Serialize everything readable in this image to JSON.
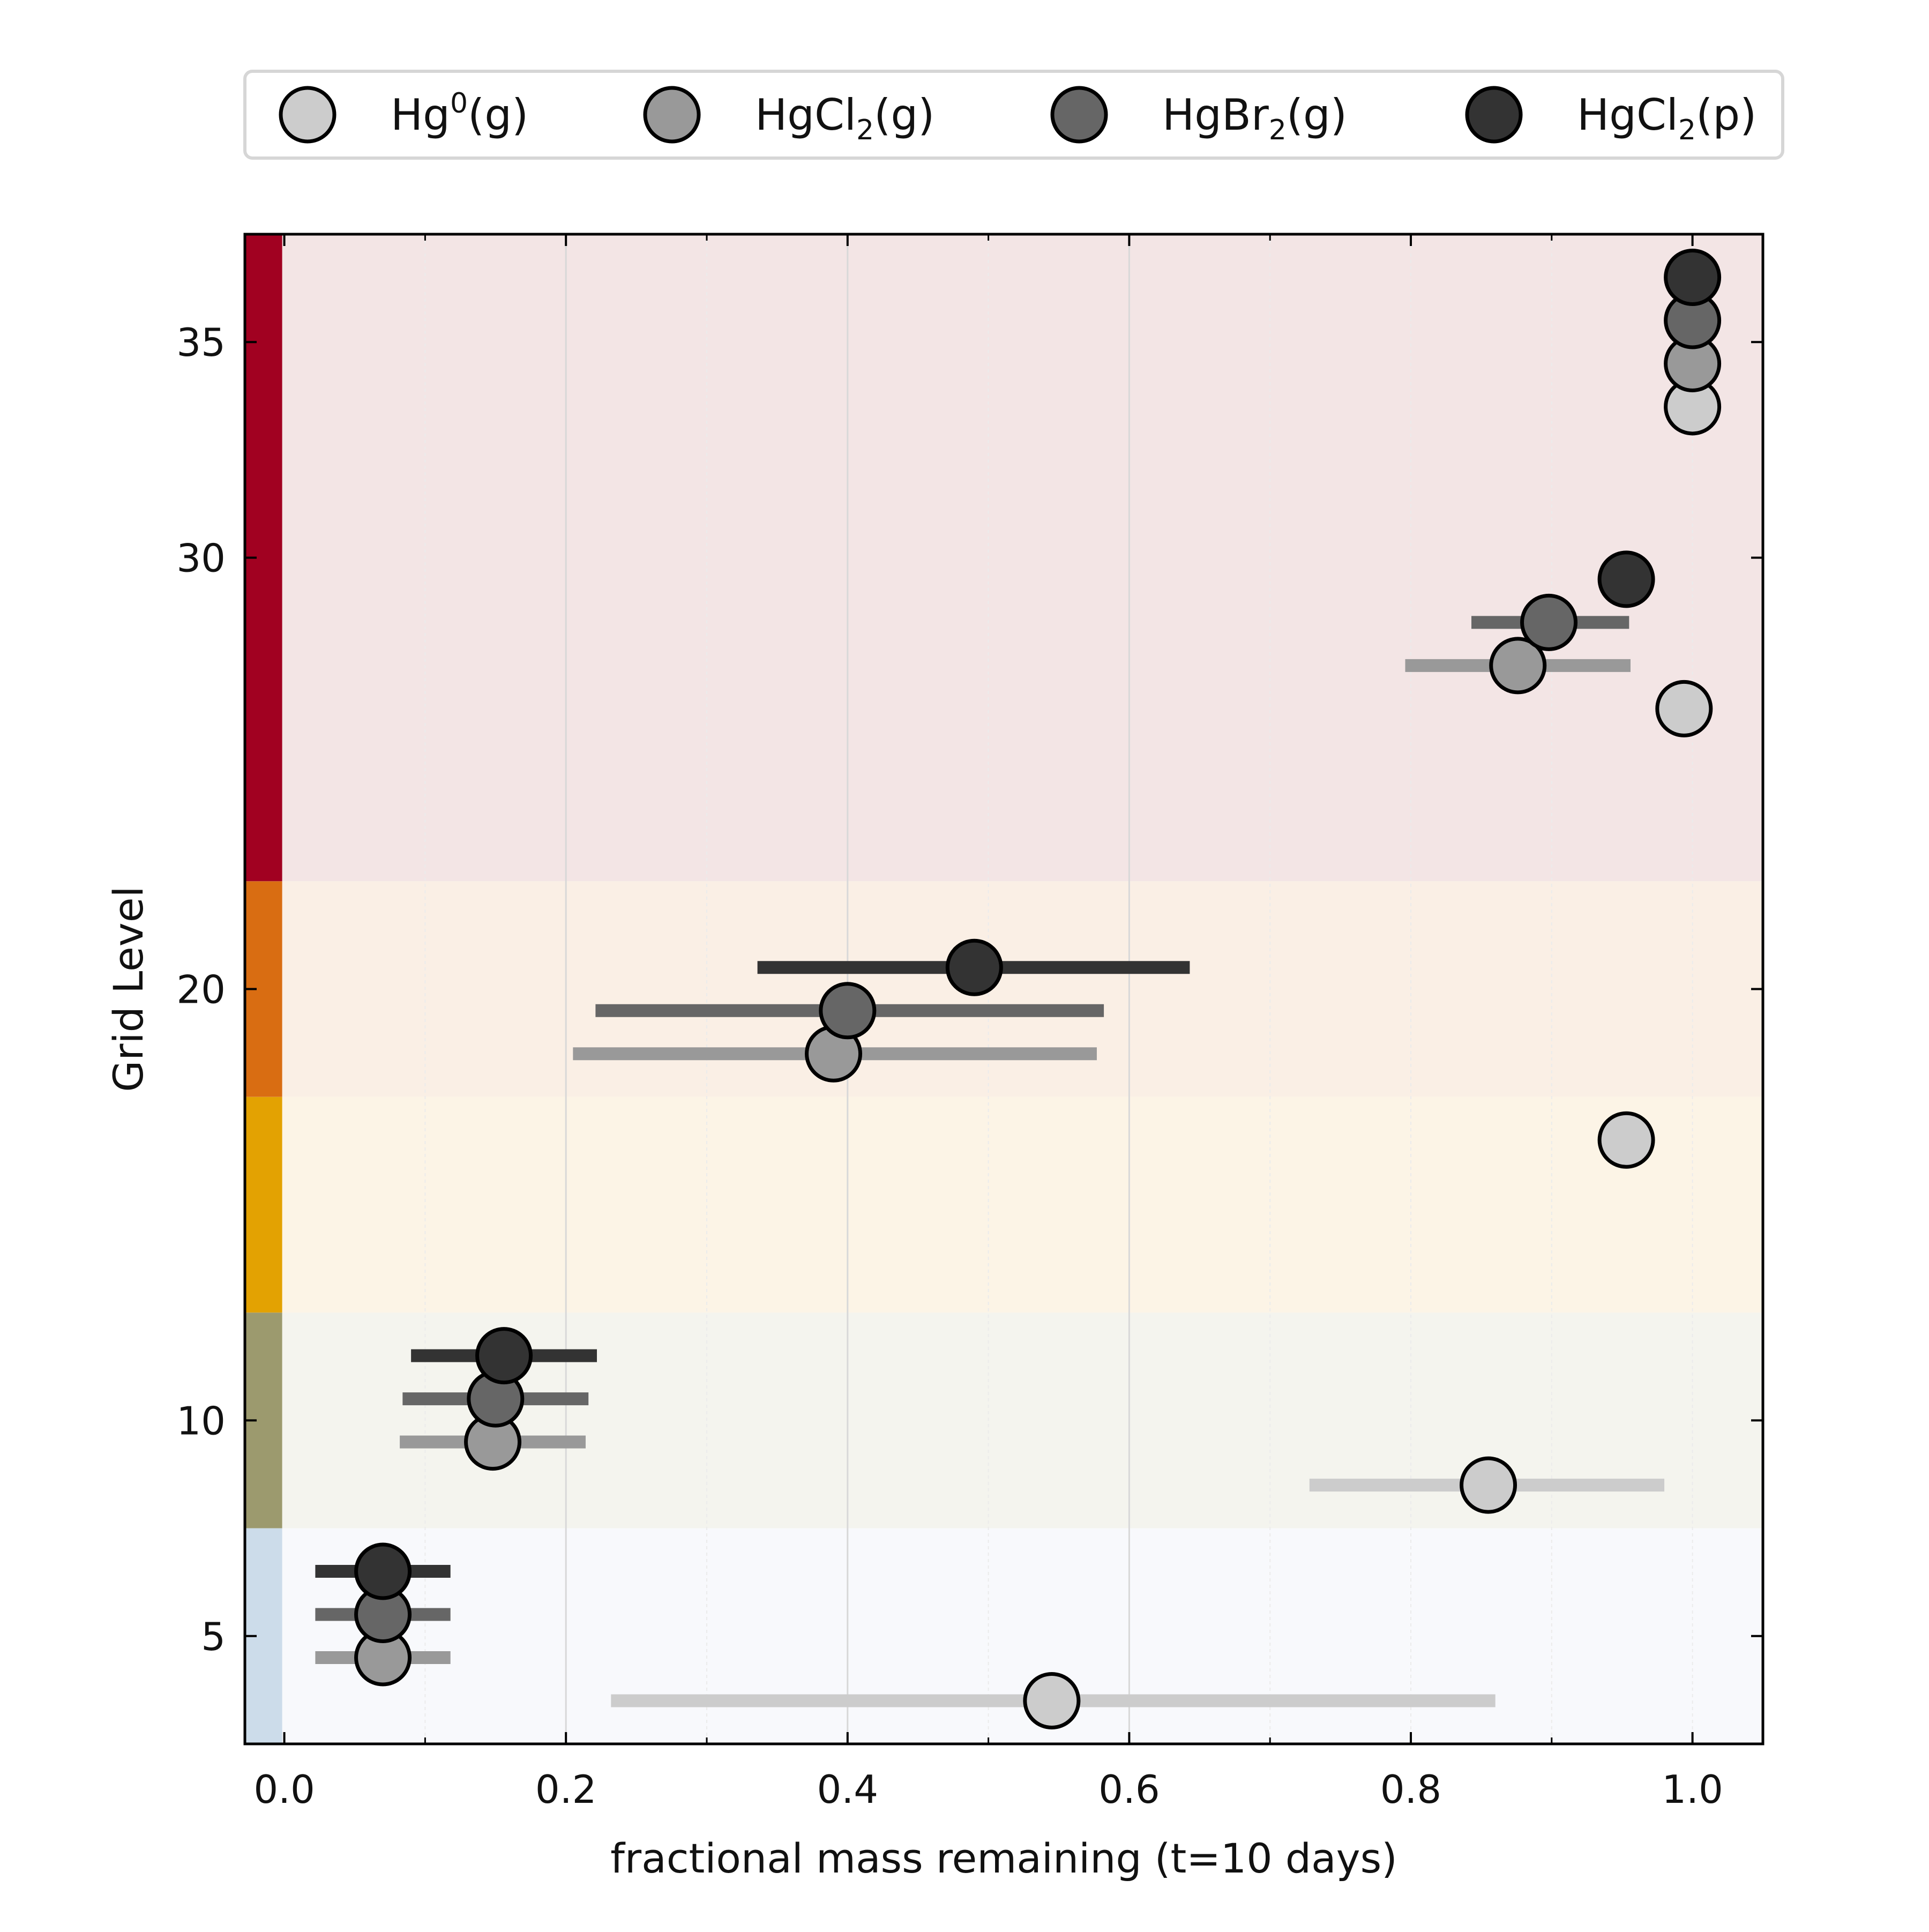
{
  "chart_data": {
    "type": "scatter",
    "xlabel": "fractional mass remaining (t=10 days)",
    "ylabel": "Grid Level",
    "xlim": [
      -0.028,
      1.05
    ],
    "ylim": [
      2.5,
      37.5
    ],
    "xticks": [
      0.0,
      0.2,
      0.4,
      0.6,
      0.8,
      1.0
    ],
    "xtick_labels": [
      "0.0",
      "0.2",
      "0.4",
      "0.6",
      "0.8",
      "1.0"
    ],
    "yticks": [
      5,
      10,
      20,
      30,
      35
    ],
    "ytick_labels": [
      "5",
      "10",
      "20",
      "30",
      "35"
    ],
    "grid": "vertical only",
    "legend_placement": "top, outside plot, single row",
    "bands": [
      {
        "y_range": [
          2.5,
          7.5
        ],
        "color": "#ccdcea",
        "fill": "#f8f9fc"
      },
      {
        "y_range": [
          7.5,
          12.5
        ],
        "color": "#9c9a6e",
        "fill": "#f4f4ee"
      },
      {
        "y_range": [
          12.5,
          17.5
        ],
        "color": "#e3a202",
        "fill": "#fcf4e6"
      },
      {
        "y_range": [
          17.5,
          22.5
        ],
        "color": "#d96d12",
        "fill": "#faefe5"
      },
      {
        "y_range": [
          22.5,
          37.5
        ],
        "color": "#a10121",
        "fill": "#f3e5e5"
      }
    ],
    "series": [
      {
        "name": "Hg⁰(g)",
        "legend": {
          "base": "Hg",
          "sup": "0",
          "tail": "(g)"
        },
        "marker_color": "#cccccc",
        "bar_color": "#cccccc",
        "points": [
          {
            "level": 3.5,
            "x": 0.545,
            "xerr": [
              0.232,
              0.86
            ]
          },
          {
            "level": 8.5,
            "x": 0.855,
            "xerr": [
              0.728,
              0.98
            ]
          },
          {
            "level": 16.5,
            "x": 0.953,
            "xerr": null
          },
          {
            "level": 26.5,
            "x": 0.994,
            "xerr": null
          },
          {
            "level": 33.5,
            "x": 1.0,
            "xerr": null
          }
        ]
      },
      {
        "name": "HgCl₂(g)",
        "legend": {
          "base": "HgCl",
          "sub": "2",
          "tail": "(g)"
        },
        "marker_color": "#999999",
        "bar_color": "#999999",
        "points": [
          {
            "level": 4.5,
            "x": 0.07,
            "xerr": [
              0.022,
              0.118
            ]
          },
          {
            "level": 9.5,
            "x": 0.148,
            "xerr": [
              0.082,
              0.214
            ]
          },
          {
            "level": 18.5,
            "x": 0.39,
            "xerr": [
              0.205,
              0.577
            ]
          },
          {
            "level": 27.5,
            "x": 0.876,
            "xerr": [
              0.796,
              0.956
            ]
          },
          {
            "level": 34.5,
            "x": 1.0,
            "xerr": null
          }
        ]
      },
      {
        "name": "HgBr₂(g)",
        "legend": {
          "base": "HgBr",
          "sub": "2",
          "tail": "(g)"
        },
        "marker_color": "#666666",
        "bar_color": "#666666",
        "points": [
          {
            "level": 5.5,
            "x": 0.07,
            "xerr": [
              0.022,
              0.118
            ]
          },
          {
            "level": 10.5,
            "x": 0.15,
            "xerr": [
              0.084,
              0.216
            ]
          },
          {
            "level": 19.5,
            "x": 0.4,
            "xerr": [
              0.221,
              0.582
            ]
          },
          {
            "level": 28.5,
            "x": 0.898,
            "xerr": [
              0.843,
              0.955
            ]
          },
          {
            "level": 35.5,
            "x": 1.0,
            "xerr": null
          }
        ]
      },
      {
        "name": "HgCl₂(p)",
        "legend": {
          "base": "HgCl",
          "sub": "2",
          "tail": "(p)"
        },
        "marker_color": "#333333",
        "bar_color": "#333333",
        "points": [
          {
            "level": 6.5,
            "x": 0.07,
            "xerr": [
              0.022,
              0.118
            ]
          },
          {
            "level": 11.5,
            "x": 0.156,
            "xerr": [
              0.09,
              0.222
            ]
          },
          {
            "level": 20.5,
            "x": 0.49,
            "xerr": [
              0.336,
              0.643
            ]
          },
          {
            "level": 29.5,
            "x": 0.953,
            "xerr": null
          },
          {
            "level": 36.5,
            "x": 1.0,
            "xerr": null
          }
        ]
      }
    ]
  }
}
